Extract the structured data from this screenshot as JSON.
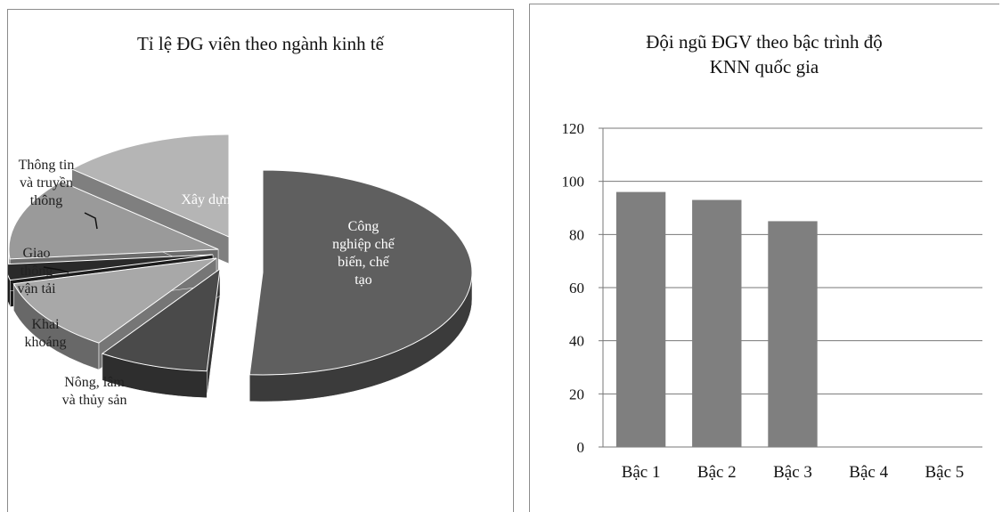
{
  "chart_data": [
    {
      "type": "pie",
      "title": "Tỉ lệ ĐG viên theo ngành kinh tế",
      "slices": [
        {
          "label": "Công nghiệp chế biến, chế tạo",
          "value": 51.0,
          "color": "#5f5f5f",
          "text_color": "#ffffff"
        },
        {
          "label": "Nông, lâm và thủy sản",
          "value": 8.5,
          "color": "#4a4a4a",
          "text_color": "#222222"
        },
        {
          "label": "Khai khoáng",
          "value": 11.5,
          "color": "#a8a8a8",
          "text_color": "#222222"
        },
        {
          "label": "Giao thông vận tải",
          "value": 2.5,
          "color": "#2a2a2a",
          "text_color": "#222222"
        },
        {
          "label": "Thông tin và truyền thông",
          "value": 13.0,
          "color": "#9a9a9a",
          "text_color": "#222222"
        },
        {
          "label": "Xây dựng",
          "value": 13.5,
          "color": "#b5b5b5",
          "text_color": "#ffffff"
        }
      ]
    },
    {
      "type": "bar",
      "title_lines": [
        "Đội ngũ ĐGV theo bậc trình độ",
        "KNN quốc gia"
      ],
      "categories": [
        "Bậc 1",
        "Bậc 2",
        "Bậc 3",
        "Bậc 4",
        "Bậc 5"
      ],
      "values": [
        96,
        93,
        85,
        0,
        0
      ],
      "ylim": [
        0,
        120
      ],
      "yticks": [
        0,
        20,
        40,
        60,
        80,
        100,
        120
      ],
      "grid": true,
      "bar_color": "#7f7f7f"
    }
  ]
}
